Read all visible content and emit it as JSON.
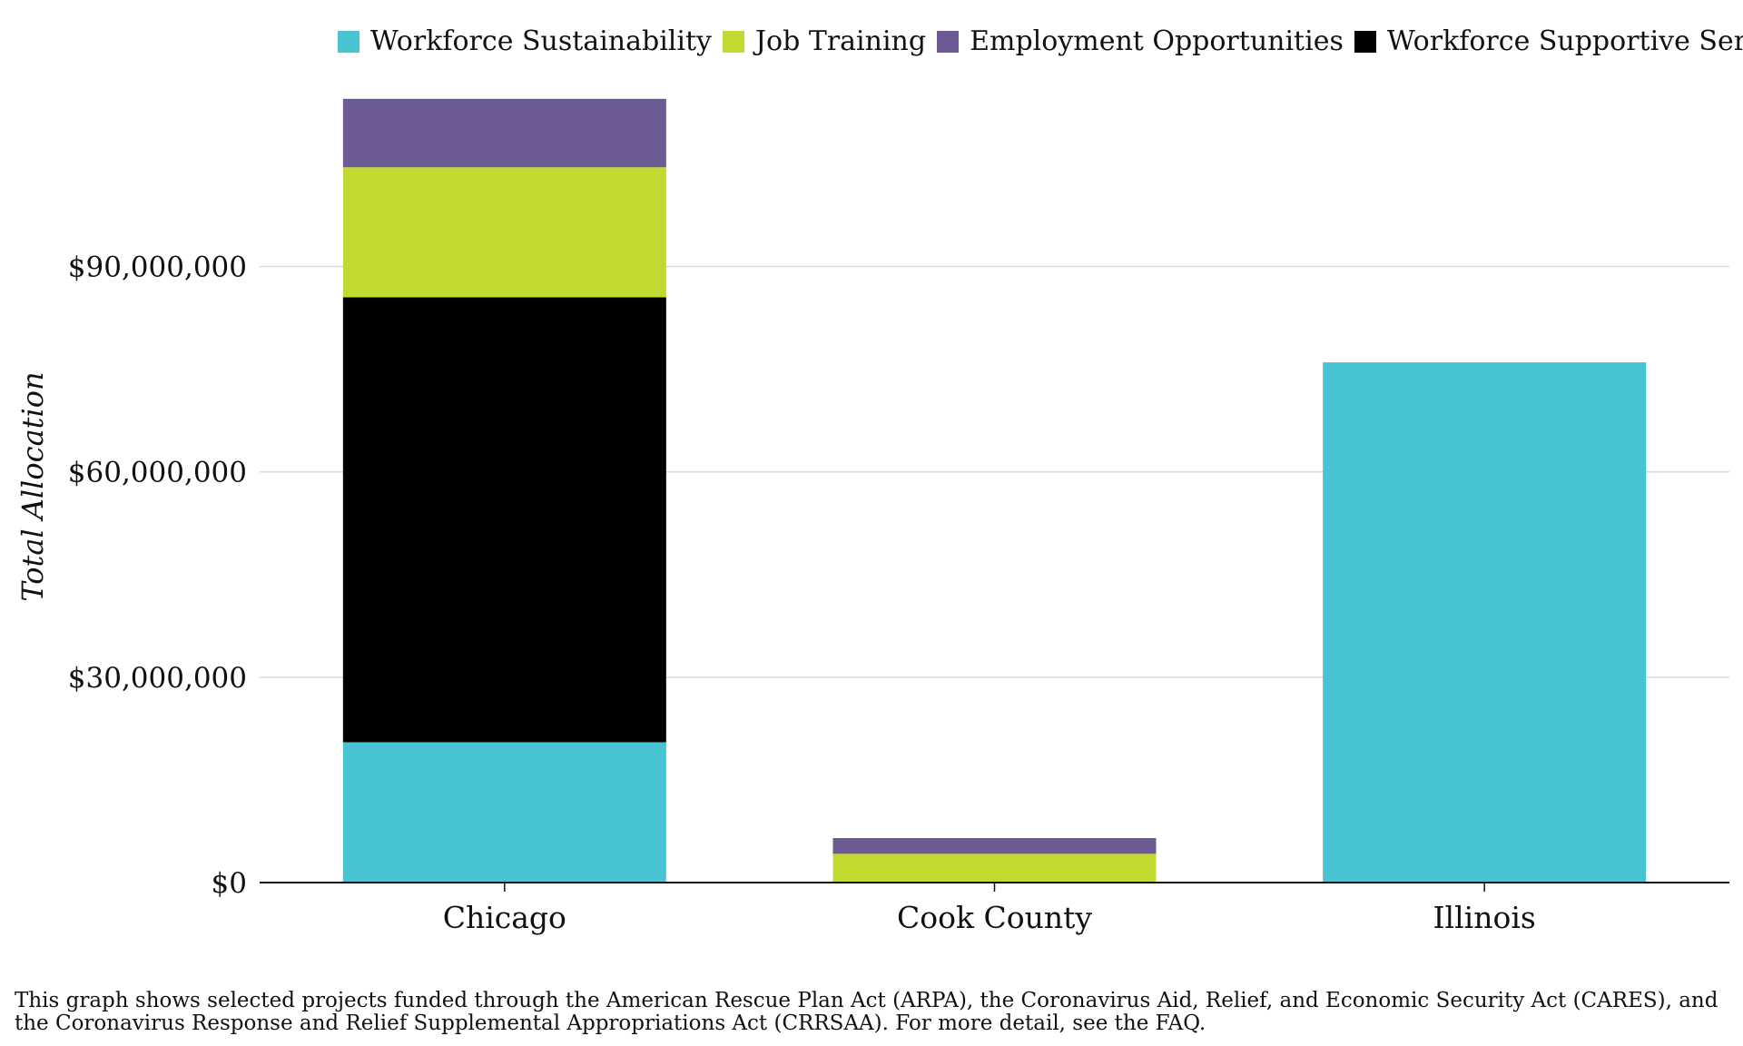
{
  "chart_data": {
    "type": "bar",
    "stacked": true,
    "categories": [
      "Chicago",
      "Cook County",
      "Illinois"
    ],
    "series": [
      {
        "name": "Workforce Sustainability",
        "color": "#48c3d2",
        "values": [
          20500000,
          0,
          76000000
        ]
      },
      {
        "name": "Workforce Supportive Services",
        "color": "#000000",
        "values": [
          65000000,
          0,
          0
        ]
      },
      {
        "name": "Job Training",
        "color": "#c2da2f",
        "values": [
          19000000,
          4200000,
          0
        ]
      },
      {
        "name": "Employment Opportunities",
        "color": "#6c5a94",
        "values": [
          10000000,
          2300000,
          0
        ]
      }
    ],
    "legend_order": [
      "Workforce Sustainability",
      "Job Training",
      "Employment Opportunities",
      "Workforce Supportive Services"
    ],
    "xlabel": "",
    "ylabel": "Total Allocation",
    "yticks": [
      0,
      30000000,
      60000000,
      90000000
    ],
    "ytick_labels": [
      "$0",
      "$30,000,000",
      "$60,000,000",
      "$90,000,000"
    ],
    "ylim": [
      0,
      117000000
    ],
    "grid": true,
    "legend_position": "top"
  },
  "footnote": "This graph shows selected projects funded through the American Rescue Plan Act (ARPA), the Coronavirus Aid, Relief, and Economic Security Act (CARES), and the Coronavirus Response and Relief Supplemental Appropriations Act (CRRSAA). For more detail, see the FAQ."
}
